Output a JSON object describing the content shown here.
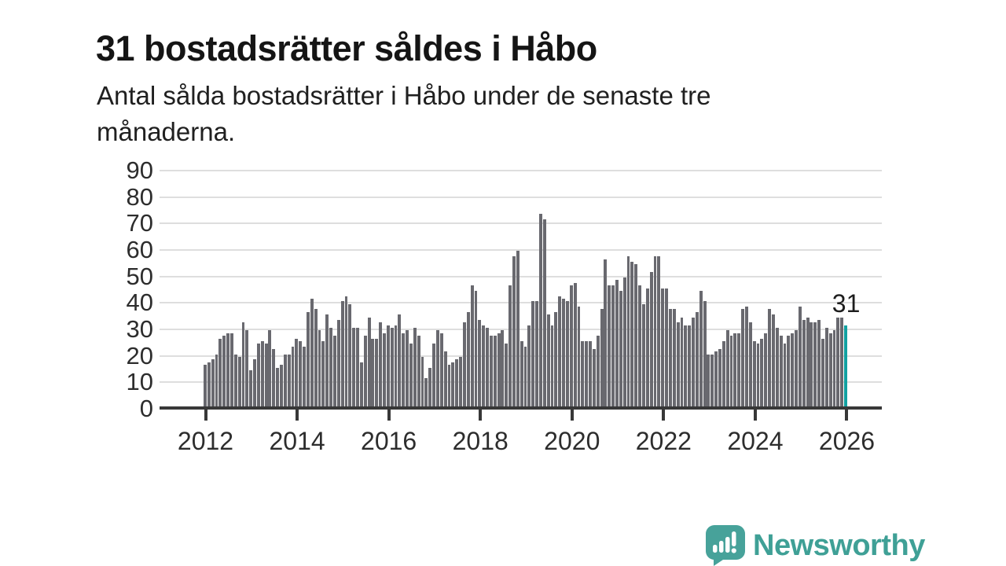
{
  "header": {
    "title": "31 bostadsrätter såldes i Håbo",
    "subtitle_line1": "Antal sålda bostadsrätter i Håbo under de senaste tre",
    "subtitle_line2": "månaderna."
  },
  "chart_data": {
    "type": "bar",
    "title": "31 bostadsrätter såldes i Håbo",
    "subtitle": "Antal sålda bostadsrätter i Håbo under de senaste tre månaderna.",
    "ylabel": "",
    "xlabel": "",
    "ylim": [
      0,
      90
    ],
    "grid": true,
    "y_tick_labels": [
      "90",
      "80",
      "70",
      "60",
      "50",
      "40",
      "30",
      "20",
      "10",
      "0"
    ],
    "x_tick_labels": [
      "2012",
      "2014",
      "2016",
      "2018",
      "2020",
      "2022",
      "2024",
      "2026"
    ],
    "x_start_year": 2012,
    "frequency": "monthly",
    "values": [
      16,
      17,
      18,
      20,
      26,
      27,
      28,
      28,
      20,
      19,
      32,
      29,
      14,
      18,
      24,
      25,
      24,
      29,
      22,
      15,
      16,
      20,
      20,
      23,
      26,
      25,
      23,
      36,
      41,
      37,
      29,
      25,
      35,
      30,
      27,
      33,
      40,
      42,
      39,
      30,
      30,
      17,
      27,
      34,
      26,
      26,
      32,
      28,
      31,
      30,
      31,
      35,
      28,
      29,
      24,
      30,
      27,
      19,
      11,
      15,
      24,
      29,
      28,
      21,
      16,
      17,
      18,
      19,
      32,
      36,
      46,
      44,
      33,
      31,
      30,
      27,
      27,
      28,
      29,
      24,
      46,
      57,
      59,
      25,
      23,
      31,
      40,
      40,
      73,
      71,
      35,
      31,
      36,
      42,
      41,
      40,
      46,
      47,
      38,
      25,
      25,
      25,
      22,
      27,
      37,
      56,
      46,
      46,
      48,
      44,
      49,
      57,
      55,
      54,
      46,
      39,
      45,
      51,
      57,
      57,
      45,
      45,
      37,
      37,
      32,
      34,
      31,
      31,
      34,
      36,
      44,
      40,
      20,
      20,
      21,
      22,
      25,
      29,
      27,
      28,
      28,
      37,
      38,
      32,
      25,
      24,
      26,
      28,
      37,
      35,
      30,
      27,
      24,
      27,
      28,
      29,
      38,
      33,
      34,
      32,
      32,
      33,
      26,
      30,
      28,
      29,
      34,
      34,
      31
    ],
    "highlight_last_value": 31,
    "highlight_label": "31",
    "bar_color": "#69696f",
    "highlight_color": "#12a1a1",
    "gridline_color": "#dedede",
    "axis_color": "#383838",
    "label_color": "#2d2d2d"
  },
  "footer": {
    "brand": "Newsworthy",
    "logo_icon": "newsworthy-bar-chart-speech-bubble-icon",
    "brand_color": "#3fa096"
  }
}
